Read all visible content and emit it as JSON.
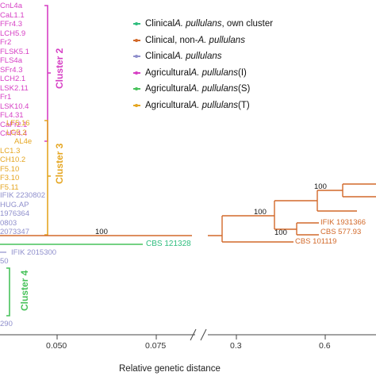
{
  "colors": {
    "magenta": "#d63fc4",
    "gold": "#e5a622",
    "lavender": "#8f8fcc",
    "orange": "#d2692a",
    "green": "#47c25a",
    "own_cluster_green": "#2fbd7e"
  },
  "legend": [
    {
      "pre": "Clinical ",
      "it": "A. pullulans",
      "post": ", own cluster",
      "color": "#2fbd7e"
    },
    {
      "pre": "Clinical, non-",
      "it": "A. pullulans",
      "post": "",
      "color": "#d2692a"
    },
    {
      "pre": "Clinical ",
      "it": "A. pullulans",
      "post": "",
      "color": "#8f8fcc"
    },
    {
      "pre": "Agricultural ",
      "it": "A. pullulans",
      "post": " (I)",
      "color": "#d63fc4"
    },
    {
      "pre": "Agricultural ",
      "it": "A. pullulans",
      "post": " (S)",
      "color": "#47c25a"
    },
    {
      "pre": "Agricultural ",
      "it": "A. pullulans",
      "post": " (T)",
      "color": "#e5a622"
    }
  ],
  "clusters": [
    {
      "name": "Cluster 2",
      "color": "#d63fc4"
    },
    {
      "name": "Cluster 3",
      "color": "#e5a622"
    },
    {
      "name": "Cluster 4",
      "color": "#47c25a"
    }
  ],
  "cluster2_taxa": [
    "CnL4a",
    "CaL1.1",
    "FFr4.3",
    "LCH5.9",
    "Fr2",
    "FLSK5.1",
    "FLS4a",
    "SFr4.3",
    "LCH2.1",
    "LSK2.11",
    "Fr1",
    "LSK10.4",
    "FL4.31",
    "CaFr2.1",
    "CnFr4.4"
  ],
  "cluster3_taxa": [
    "LF5.16",
    "LC5.2",
    "AL4e",
    "LC1.3",
    "CH10.2",
    "F5.10",
    "F3.10",
    "F5.11"
  ],
  "clinical_taxa": [
    "IFIK 2230802",
    "HUG.AP",
    "1976364",
    "0803",
    "2073347"
  ],
  "own_cluster_taxon": "CBS 121328",
  "extra_taxon": "IFIK 2015300",
  "partial_taxa": [
    "50",
    "290"
  ],
  "orange_taxa": [
    "IFIK 1931366",
    "CBS 577.93",
    "CBS 101119"
  ],
  "bootstrap": [
    "100",
    "100",
    "100",
    "100"
  ],
  "axis": {
    "ticks": [
      "0.050",
      "0.075",
      "0.3",
      "0.6"
    ],
    "label": "Relative genetic distance"
  }
}
